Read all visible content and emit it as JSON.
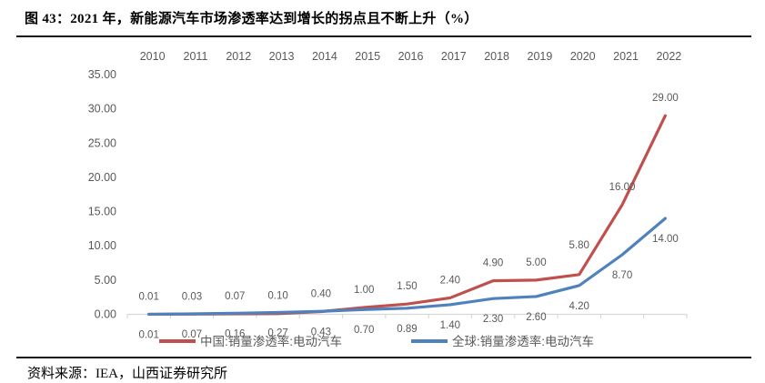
{
  "figure": {
    "title": "图 43：2021 年，新能源汽车市场渗透率达到增长的拐点且不断上升（%）",
    "source": "资料来源：IEA，山西证券研究所"
  },
  "chart_data": {
    "type": "line",
    "categories": [
      "2010",
      "2011",
      "2012",
      "2013",
      "2014",
      "2015",
      "2016",
      "2017",
      "2018",
      "2019",
      "2020",
      "2021",
      "2022"
    ],
    "series": [
      {
        "name": "中国:销量渗透率:电动汽车",
        "color": "#C0504D",
        "values": [
          0.01,
          0.03,
          0.07,
          0.1,
          0.4,
          1.0,
          1.5,
          2.4,
          4.9,
          5.0,
          5.8,
          16.0,
          29.0
        ]
      },
      {
        "name": "全球:销量渗透率:电动汽车",
        "color": "#4F81BD",
        "values": [
          0.01,
          0.07,
          0.16,
          0.27,
          0.43,
          0.7,
          0.89,
          1.4,
          2.3,
          2.6,
          4.2,
          8.7,
          14.0
        ]
      }
    ],
    "ylim": [
      0,
      35
    ],
    "y_ticks": [
      "0.00",
      "5.00",
      "10.00",
      "15.00",
      "20.00",
      "25.00",
      "30.00",
      "35.00"
    ],
    "x_labels_position": "top",
    "data_labels": true,
    "grid": false,
    "legend_position": "bottom",
    "axis_color": "#d9d9d9",
    "label_color": "#595959"
  }
}
